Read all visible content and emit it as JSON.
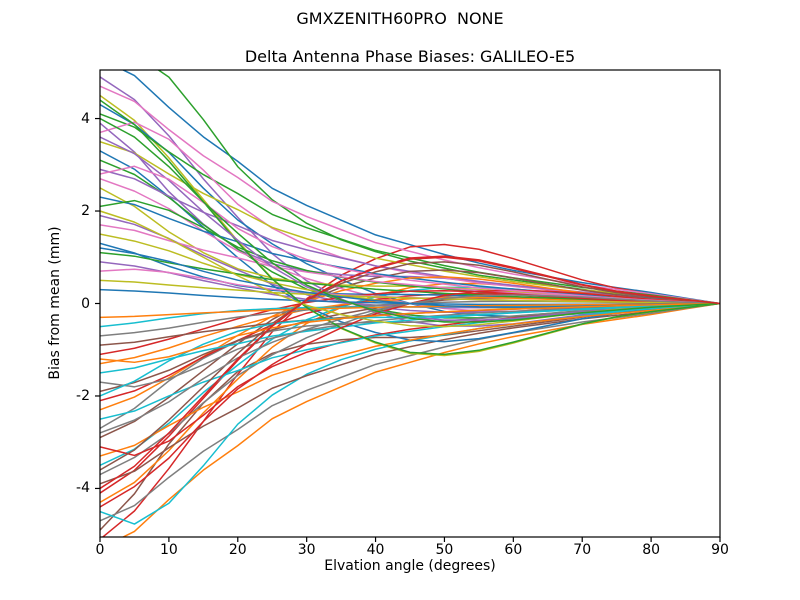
{
  "figure": {
    "background": "#ffffff",
    "text_color": "#000000",
    "frame_color": "#000000"
  },
  "chart_data": {
    "type": "line",
    "suptitle": "GMXZENITH60PRO  NONE",
    "title": "Delta Antenna Phase Biases: GALILEO-E5",
    "xlabel": "Elvation angle (degrees)",
    "ylabel": "Bias from mean (mm)",
    "xlim": [
      0,
      90
    ],
    "ylim": [
      -5.05,
      5.05
    ],
    "xticks": [
      0,
      10,
      20,
      30,
      40,
      50,
      60,
      70,
      80,
      90
    ],
    "yticks": [
      -4,
      -2,
      0,
      2,
      4
    ],
    "grid": false,
    "legend": "none",
    "line_width": 1.5,
    "palette": [
      "#1f77b4",
      "#ff7f0e",
      "#2ca02c",
      "#d62728",
      "#9467bd",
      "#8c564b",
      "#e377c2",
      "#7f7f7f",
      "#bcbd22",
      "#17becf"
    ],
    "x": [
      0,
      5,
      10,
      15,
      20,
      25,
      30,
      35,
      40,
      45,
      50,
      55,
      60,
      65,
      70,
      75,
      80,
      85,
      90
    ],
    "profiles": {
      "P1": [
        1,
        0.93,
        0.8,
        0.68,
        0.58,
        0.47,
        0.4,
        0.34,
        0.28,
        0.24,
        0.2,
        0.165,
        0.135,
        0.11,
        0.085,
        0.065,
        0.045,
        0.022,
        0
      ],
      "P2": [
        1,
        0.9,
        0.74,
        0.55,
        0.38,
        0.22,
        0.1,
        0.02,
        -0.04,
        -0.08,
        -0.1,
        -0.1,
        -0.09,
        -0.07,
        -0.05,
        -0.035,
        -0.02,
        -0.01,
        0
      ],
      "P3": [
        1,
        0.84,
        0.62,
        0.44,
        0.3,
        0.22,
        0.18,
        0.16,
        0.15,
        0.15,
        0.14,
        0.12,
        0.1,
        0.08,
        0.06,
        0.04,
        0.025,
        0.012,
        0
      ],
      "P4": [
        1,
        0.88,
        0.7,
        0.5,
        0.3,
        0.12,
        -0.02,
        -0.12,
        -0.19,
        -0.24,
        -0.25,
        -0.23,
        -0.19,
        -0.145,
        -0.1,
        -0.065,
        -0.04,
        -0.02,
        0
      ],
      "P5": [
        1,
        1.06,
        0.96,
        0.78,
        0.58,
        0.44,
        0.34,
        0.27,
        0.22,
        0.18,
        0.15,
        0.12,
        0.1,
        0.08,
        0.06,
        0.04,
        0.025,
        0.012,
        0
      ],
      "P6": [
        1,
        0.9,
        0.76,
        0.58,
        0.42,
        0.3,
        0.2,
        0.12,
        0.05,
        0.0,
        -0.04,
        -0.06,
        -0.065,
        -0.06,
        -0.05,
        -0.035,
        -0.02,
        -0.01,
        0
      ]
    },
    "series": [
      {
        "scale": 5.3,
        "profile": "P1"
      },
      {
        "scale": -5.3,
        "profile": "P1"
      },
      {
        "scale": 5.1,
        "profile": "P5"
      },
      {
        "scale": -5.1,
        "profile": "P4"
      },
      {
        "scale": 4.9,
        "profile": "P2"
      },
      {
        "scale": -4.9,
        "profile": "P3"
      },
      {
        "scale": 4.7,
        "profile": "P1"
      },
      {
        "scale": -4.7,
        "profile": "P1"
      },
      {
        "scale": 4.5,
        "profile": "P4"
      },
      {
        "scale": -4.5,
        "profile": "P5"
      },
      {
        "scale": 4.3,
        "profile": "P6"
      },
      {
        "scale": -4.3,
        "profile": "P2"
      },
      {
        "scale": 4.1,
        "profile": "P1"
      },
      {
        "scale": -4.1,
        "profile": "P4"
      },
      {
        "scale": 3.9,
        "profile": "P3"
      },
      {
        "scale": -3.9,
        "profile": "P1"
      },
      {
        "scale": 3.7,
        "profile": "P5"
      },
      {
        "scale": -3.7,
        "profile": "P6"
      },
      {
        "scale": 3.5,
        "profile": "P1"
      },
      {
        "scale": -3.5,
        "profile": "P2"
      },
      {
        "scale": 3.3,
        "profile": "P4"
      },
      {
        "scale": -3.3,
        "profile": "P1"
      },
      {
        "scale": 3.1,
        "profile": "P2"
      },
      {
        "scale": -3.1,
        "profile": "P5"
      },
      {
        "scale": 2.9,
        "profile": "P1"
      },
      {
        "scale": -2.9,
        "profile": "P4"
      },
      {
        "scale": 2.7,
        "profile": "P6"
      },
      {
        "scale": -2.7,
        "profile": "P3"
      },
      {
        "scale": 2.5,
        "profile": "P3"
      },
      {
        "scale": -2.5,
        "profile": "P1"
      },
      {
        "scale": 2.3,
        "profile": "P1"
      },
      {
        "scale": -2.3,
        "profile": "P4"
      },
      {
        "scale": 2.1,
        "profile": "P5"
      },
      {
        "scale": -2.1,
        "profile": "P2"
      },
      {
        "scale": 1.9,
        "profile": "P2"
      },
      {
        "scale": -1.9,
        "profile": "P6"
      },
      {
        "scale": 1.7,
        "profile": "P1"
      },
      {
        "scale": -1.7,
        "profile": "P5"
      },
      {
        "scale": 1.5,
        "profile": "P6"
      },
      {
        "scale": -1.5,
        "profile": "P1"
      },
      {
        "scale": 1.3,
        "profile": "P3"
      },
      {
        "scale": -1.3,
        "profile": "P2"
      },
      {
        "scale": 1.1,
        "profile": "P1"
      },
      {
        "scale": -1.1,
        "profile": "P4"
      },
      {
        "scale": 0.9,
        "profile": "P2"
      },
      {
        "scale": -0.9,
        "profile": "P1"
      },
      {
        "scale": 0.7,
        "profile": "P5"
      },
      {
        "scale": -0.7,
        "profile": "P6"
      },
      {
        "scale": 0.5,
        "profile": "P1"
      },
      {
        "scale": -0.5,
        "profile": "P3"
      },
      {
        "scale": 0.3,
        "profile": "P6"
      },
      {
        "scale": -0.3,
        "profile": "P1"
      },
      {
        "scale": 4.4,
        "profile": "P4"
      },
      {
        "scale": -4.4,
        "profile": "P6"
      },
      {
        "scale": 3.6,
        "profile": "P2"
      },
      {
        "scale": -3.6,
        "profile": "P4"
      },
      {
        "scale": 2.8,
        "profile": "P5"
      },
      {
        "scale": -2.8,
        "profile": "P6"
      },
      {
        "scale": 2.0,
        "profile": "P4"
      },
      {
        "scale": -2.0,
        "profile": "P3"
      },
      {
        "scale": 1.2,
        "profile": "P6"
      },
      {
        "scale": -1.2,
        "profile": "P5"
      },
      {
        "scale": 4.0,
        "profile": "P2"
      },
      {
        "scale": -4.0,
        "profile": "P4"
      }
    ]
  }
}
